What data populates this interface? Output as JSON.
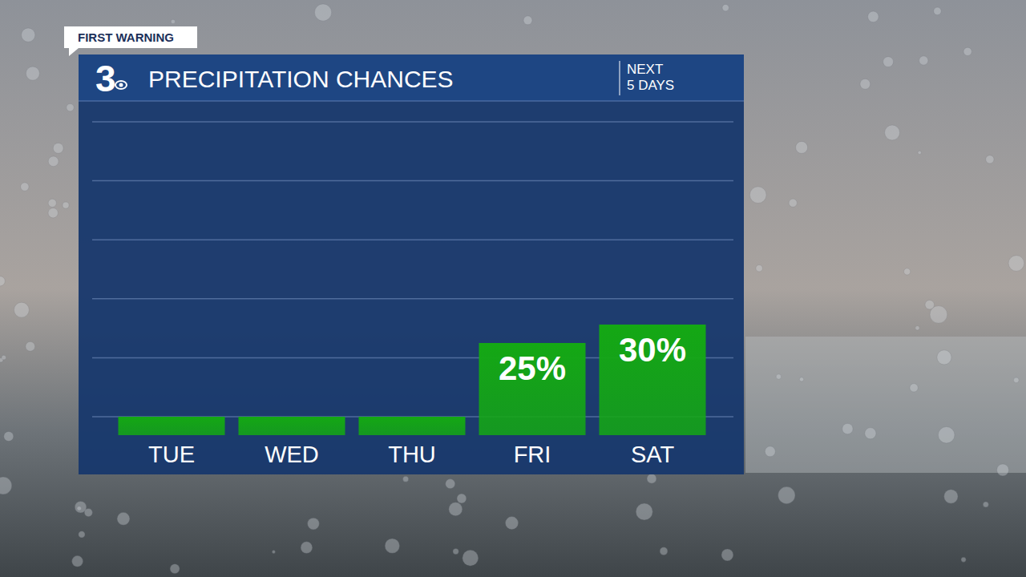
{
  "chart_data": {
    "type": "bar",
    "title": "PRECIPITATION CHANCES",
    "subtitle": "NEXT 5 DAYS",
    "annotations": [
      "FIRST WARNING",
      "3"
    ],
    "categories": [
      "TUE",
      "WED",
      "THU",
      "FRI",
      "SAT"
    ],
    "values": [
      5,
      5,
      5,
      25,
      30
    ],
    "value_labels": [
      null,
      null,
      null,
      "25%",
      "30%"
    ],
    "data_labels": true,
    "color": "#14a814",
    "ylim": [
      0,
      90
    ],
    "yticks": [
      5,
      21,
      37,
      53,
      69,
      85
    ],
    "grid": true,
    "tick_labels": "x"
  }
}
